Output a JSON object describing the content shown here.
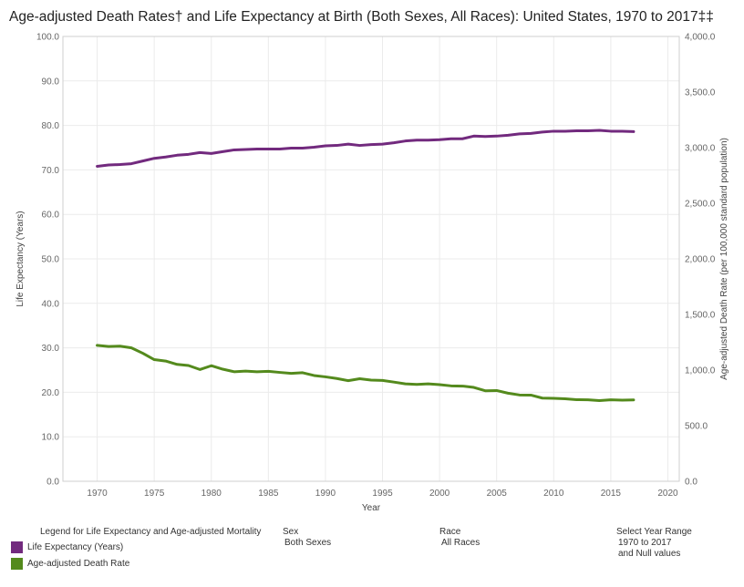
{
  "title": "Age-adjusted Death Rates† and Life Expectancy at Birth (Both Sexes, All Races): United States, 1970 to 2017‡‡",
  "colors": {
    "life_expectancy": "#722a7e",
    "death_rate": "#548a1d"
  },
  "chart_data": {
    "type": "line",
    "xlabel": "Year",
    "ylabel_left": "Life Expectancy (Years)",
    "ylabel_right": "Age-adjusted Death Rate (per 100,000 standard population)",
    "xlim": [
      1967,
      2021
    ],
    "ylim_left": [
      0,
      100
    ],
    "ylim_right": [
      0,
      4000
    ],
    "x_ticks": [
      "1970",
      "1975",
      "1980",
      "1985",
      "1990",
      "1995",
      "2000",
      "2005",
      "2010",
      "2015",
      "2020"
    ],
    "y_left_ticks": [
      "0.0",
      "10.0",
      "20.0",
      "30.0",
      "40.0",
      "50.0",
      "60.0",
      "70.0",
      "80.0",
      "90.0",
      "100.0"
    ],
    "y_right_ticks": [
      "0.0",
      "500.0",
      "1,000.0",
      "1,500.0",
      "2,000.0",
      "2,500.0",
      "3,000.0",
      "3,500.0",
      "4,000.0"
    ],
    "grid": true,
    "x": [
      1970,
      1971,
      1972,
      1973,
      1974,
      1975,
      1976,
      1977,
      1978,
      1979,
      1980,
      1981,
      1982,
      1983,
      1984,
      1985,
      1986,
      1987,
      1988,
      1989,
      1990,
      1991,
      1992,
      1993,
      1994,
      1995,
      1996,
      1997,
      1998,
      1999,
      2000,
      2001,
      2002,
      2003,
      2004,
      2005,
      2006,
      2007,
      2008,
      2009,
      2010,
      2011,
      2012,
      2013,
      2014,
      2015,
      2016,
      2017
    ],
    "series": [
      {
        "name": "Life Expectancy (Years)",
        "axis": "left",
        "values": [
          70.8,
          71.1,
          71.2,
          71.4,
          72.0,
          72.6,
          72.9,
          73.3,
          73.5,
          73.9,
          73.7,
          74.1,
          74.5,
          74.6,
          74.7,
          74.7,
          74.7,
          74.9,
          74.9,
          75.1,
          75.4,
          75.5,
          75.8,
          75.5,
          75.7,
          75.8,
          76.1,
          76.5,
          76.7,
          76.7,
          76.8,
          77.0,
          77.0,
          77.6,
          77.5,
          77.6,
          77.8,
          78.1,
          78.2,
          78.5,
          78.7,
          78.7,
          78.8,
          78.8,
          78.9,
          78.7,
          78.7,
          78.6
        ]
      },
      {
        "name": "Age-adjusted Death Rate",
        "axis": "right",
        "values": [
          1222,
          1212,
          1215,
          1200,
          1151,
          1094,
          1081,
          1051,
          1041,
          1005,
          1039,
          1008,
          985,
          991,
          985,
          989,
          979,
          970,
          976,
          951,
          939,
          924,
          905,
          922,
          910,
          907,
          892,
          876,
          871,
          876,
          869,
          858,
          856,
          844,
          814,
          816,
          792,
          776,
          775,
          748,
          746,
          742,
          734,
          733,
          725,
          733,
          730,
          732
        ]
      }
    ]
  },
  "legend": {
    "heading": "Legend for Life Expectancy and Age-adjusted Mortality",
    "items": [
      "Life Expectancy (Years)",
      "Age-adjusted Death Rate"
    ]
  },
  "filters": {
    "sex": {
      "label": "Sex",
      "value": "Both Sexes"
    },
    "race": {
      "label": "Race",
      "value": "All Races"
    },
    "year_range": {
      "label": "Select Year Range",
      "value": "1970 to 2017",
      "extra": "and Null values"
    }
  }
}
